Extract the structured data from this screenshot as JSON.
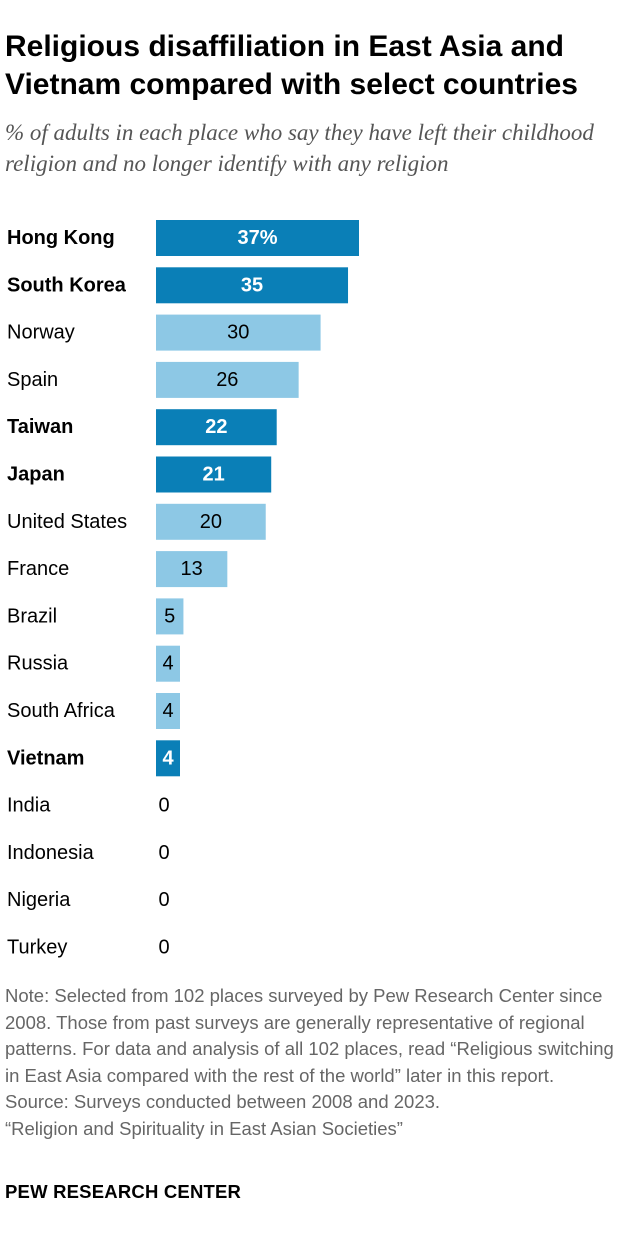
{
  "title": "Religious disaffiliation in East Asia and Vietnam compared with select countries",
  "subtitle": "% of adults in each place who say they have left their childhood religion and no longer identify with any religion",
  "note": "Note: Selected from 102 places surveyed by Pew Research Center since 2008. Those from past surveys are generally representative of regional patterns. For data and analysis of all 102 places, read “Religious switching in East Asia compared with the rest of the world” later in this report.",
  "source": "Source: Surveys conducted between 2008 and 2023.",
  "report": "“Religion and Spirituality in East Asian Societies”",
  "brand": "PEW RESEARCH CENTER",
  "colors": {
    "highlight": "#0a7fb7",
    "other": "#8dc8e5",
    "highlight_label": "#ffffff",
    "other_label": "#000000"
  },
  "chart_data": {
    "type": "bar",
    "orientation": "horizontal",
    "categories": [
      "Hong Kong",
      "South Korea",
      "Norway",
      "Spain",
      "Taiwan",
      "Japan",
      "United States",
      "France",
      "Brazil",
      "Russia",
      "South Africa",
      "Vietnam",
      "India",
      "Indonesia",
      "Nigeria",
      "Turkey"
    ],
    "values": [
      37,
      35,
      30,
      26,
      22,
      21,
      20,
      13,
      5,
      4,
      4,
      4,
      0,
      0,
      0,
      0
    ],
    "value_labels": [
      "37%",
      "35",
      "30",
      "26",
      "22",
      "21",
      "20",
      "13",
      "5",
      "4",
      "4",
      "4",
      "0",
      "0",
      "0",
      "0"
    ],
    "highlighted": [
      true,
      true,
      false,
      false,
      true,
      true,
      false,
      false,
      false,
      false,
      false,
      true,
      false,
      false,
      false,
      false
    ],
    "xlim": [
      0,
      37
    ],
    "grid": false,
    "legend": "none"
  }
}
